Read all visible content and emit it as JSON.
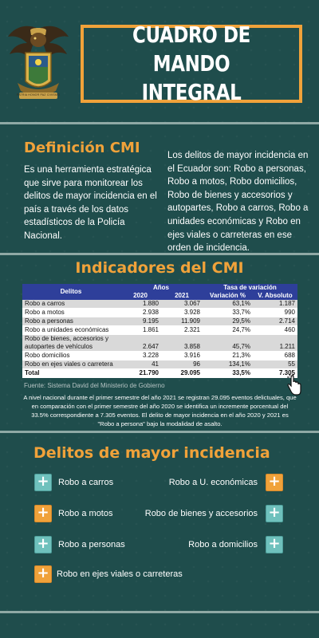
{
  "header": {
    "emblem_text": "PATRIA HONOR PAZ CIVISMO",
    "title": "CUADRO DE MANDO INTEGRAL"
  },
  "definition": {
    "title": "Definición CMI",
    "text": "Es una herramienta estratégica que sirve para monitorear los delitos de mayor incidencia en el país a través de los datos estadísticos de la Policía Nacional.",
    "right_text": "Los delitos de mayor incidencia en el Ecuador son: Robo a personas, Robo a motos, Robo domicilios, Robo de bienes y accesorios y autopartes, Robo a carros, Robo a unidades económicas y Robo en ejes viales o carreteras en ese orden de incidencia."
  },
  "indicators": {
    "title": "Indicadores del CMI",
    "table": {
      "col_delitos": "Delitos",
      "group_anos": "Años",
      "group_tasa": "Tasa de variación",
      "col_2020": "2020",
      "col_2021": "2021",
      "col_var": "Variación %",
      "col_abs": "V. Absoluto",
      "rows": [
        {
          "delito": "Robo a carros",
          "y2020": "1.880",
          "y2021": "3.067",
          "var": "63,1%",
          "abs": "1.187"
        },
        {
          "delito": "Robo a motos",
          "y2020": "2.938",
          "y2021": "3.928",
          "var": "33,7%",
          "abs": "990"
        },
        {
          "delito": "Robo a personas",
          "y2020": "9.195",
          "y2021": "11.909",
          "var": "29,5%",
          "abs": "2.714"
        },
        {
          "delito": "Robo a unidades económicas",
          "y2020": "1.861",
          "y2021": "2.321",
          "var": "24,7%",
          "abs": "460"
        },
        {
          "delito": "Robo de bienes, accesorios y autopartes de vehículos",
          "y2020": "2.647",
          "y2021": "3.858",
          "var": "45,7%",
          "abs": "1.211"
        },
        {
          "delito": "Robo domicilios",
          "y2020": "3.228",
          "y2021": "3.916",
          "var": "21,3%",
          "abs": "688"
        },
        {
          "delito": "Robo en ejes viales o carretera",
          "y2020": "41",
          "y2021": "96",
          "var": "134,1%",
          "abs": "55"
        }
      ],
      "total": {
        "delito": "Total",
        "y2020": "21.790",
        "y2021": "29.095",
        "var": "33,5%",
        "abs": "7.305"
      }
    },
    "source": "Fuente: Sistema David del Ministerio de Gobierno",
    "note": "A nivel nacional durante el primer semestre del año 2021 se registran 29.095 eventos delictuales, que en comparación con el primer semestre del año 2020 se identifica un incremente porcentual del 33.5% correspondiente a 7.305 eventos.  El delito de mayor incidencia en el año 2020 y 2021 es \"Robo a persona\" bajo la modalidad de asalto."
  },
  "crimes": {
    "title": "Delitos de mayor incidencia",
    "items": [
      "Robo a carros",
      "Robo a U. económicas",
      "Robo a motos",
      "Robo de bienes y accesorios",
      "Robo a personas",
      "Robo a domicilios",
      "Robo en ejes viales o carreteras"
    ]
  },
  "colors": {
    "background": "#1f4d4c",
    "accent": "#f0a23a",
    "teal_icon": "#6fc1bd",
    "table_header": "#2e3f9a"
  }
}
